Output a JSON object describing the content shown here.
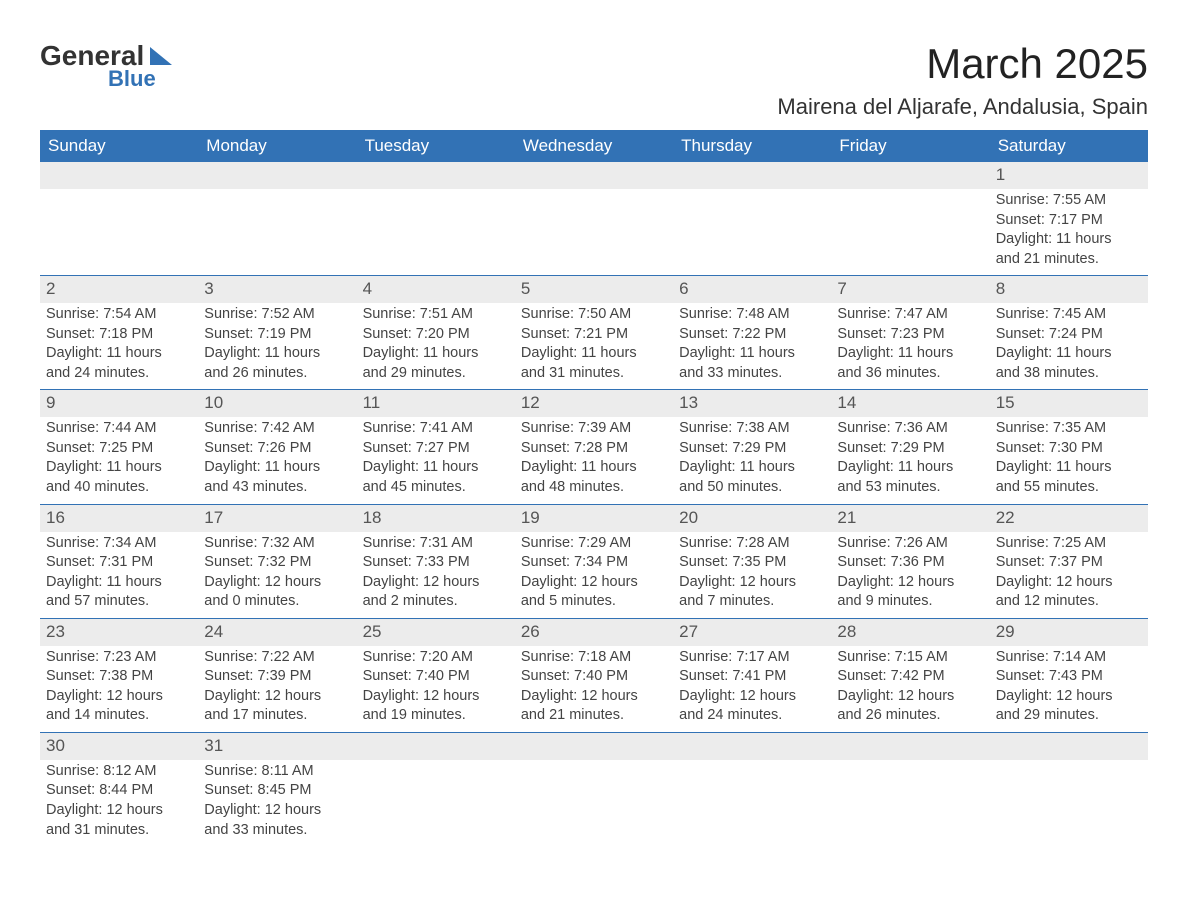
{
  "logo": {
    "text1": "General",
    "text2": "Blue"
  },
  "title": "March 2025",
  "location": "Mairena del Aljarafe, Andalusia, Spain",
  "colors": {
    "header_bg": "#3272b5",
    "header_text": "#ffffff",
    "daynum_bg": "#ececec",
    "border": "#3272b5",
    "body_text": "#444444"
  },
  "weekdays": [
    "Sunday",
    "Monday",
    "Tuesday",
    "Wednesday",
    "Thursday",
    "Friday",
    "Saturday"
  ],
  "weeks": [
    [
      null,
      null,
      null,
      null,
      null,
      null,
      {
        "d": "1",
        "sr": "Sunrise: 7:55 AM",
        "ss": "Sunset: 7:17 PM",
        "dl1": "Daylight: 11 hours",
        "dl2": "and 21 minutes."
      }
    ],
    [
      {
        "d": "2",
        "sr": "Sunrise: 7:54 AM",
        "ss": "Sunset: 7:18 PM",
        "dl1": "Daylight: 11 hours",
        "dl2": "and 24 minutes."
      },
      {
        "d": "3",
        "sr": "Sunrise: 7:52 AM",
        "ss": "Sunset: 7:19 PM",
        "dl1": "Daylight: 11 hours",
        "dl2": "and 26 minutes."
      },
      {
        "d": "4",
        "sr": "Sunrise: 7:51 AM",
        "ss": "Sunset: 7:20 PM",
        "dl1": "Daylight: 11 hours",
        "dl2": "and 29 minutes."
      },
      {
        "d": "5",
        "sr": "Sunrise: 7:50 AM",
        "ss": "Sunset: 7:21 PM",
        "dl1": "Daylight: 11 hours",
        "dl2": "and 31 minutes."
      },
      {
        "d": "6",
        "sr": "Sunrise: 7:48 AM",
        "ss": "Sunset: 7:22 PM",
        "dl1": "Daylight: 11 hours",
        "dl2": "and 33 minutes."
      },
      {
        "d": "7",
        "sr": "Sunrise: 7:47 AM",
        "ss": "Sunset: 7:23 PM",
        "dl1": "Daylight: 11 hours",
        "dl2": "and 36 minutes."
      },
      {
        "d": "8",
        "sr": "Sunrise: 7:45 AM",
        "ss": "Sunset: 7:24 PM",
        "dl1": "Daylight: 11 hours",
        "dl2": "and 38 minutes."
      }
    ],
    [
      {
        "d": "9",
        "sr": "Sunrise: 7:44 AM",
        "ss": "Sunset: 7:25 PM",
        "dl1": "Daylight: 11 hours",
        "dl2": "and 40 minutes."
      },
      {
        "d": "10",
        "sr": "Sunrise: 7:42 AM",
        "ss": "Sunset: 7:26 PM",
        "dl1": "Daylight: 11 hours",
        "dl2": "and 43 minutes."
      },
      {
        "d": "11",
        "sr": "Sunrise: 7:41 AM",
        "ss": "Sunset: 7:27 PM",
        "dl1": "Daylight: 11 hours",
        "dl2": "and 45 minutes."
      },
      {
        "d": "12",
        "sr": "Sunrise: 7:39 AM",
        "ss": "Sunset: 7:28 PM",
        "dl1": "Daylight: 11 hours",
        "dl2": "and 48 minutes."
      },
      {
        "d": "13",
        "sr": "Sunrise: 7:38 AM",
        "ss": "Sunset: 7:29 PM",
        "dl1": "Daylight: 11 hours",
        "dl2": "and 50 minutes."
      },
      {
        "d": "14",
        "sr": "Sunrise: 7:36 AM",
        "ss": "Sunset: 7:29 PM",
        "dl1": "Daylight: 11 hours",
        "dl2": "and 53 minutes."
      },
      {
        "d": "15",
        "sr": "Sunrise: 7:35 AM",
        "ss": "Sunset: 7:30 PM",
        "dl1": "Daylight: 11 hours",
        "dl2": "and 55 minutes."
      }
    ],
    [
      {
        "d": "16",
        "sr": "Sunrise: 7:34 AM",
        "ss": "Sunset: 7:31 PM",
        "dl1": "Daylight: 11 hours",
        "dl2": "and 57 minutes."
      },
      {
        "d": "17",
        "sr": "Sunrise: 7:32 AM",
        "ss": "Sunset: 7:32 PM",
        "dl1": "Daylight: 12 hours",
        "dl2": "and 0 minutes."
      },
      {
        "d": "18",
        "sr": "Sunrise: 7:31 AM",
        "ss": "Sunset: 7:33 PM",
        "dl1": "Daylight: 12 hours",
        "dl2": "and 2 minutes."
      },
      {
        "d": "19",
        "sr": "Sunrise: 7:29 AM",
        "ss": "Sunset: 7:34 PM",
        "dl1": "Daylight: 12 hours",
        "dl2": "and 5 minutes."
      },
      {
        "d": "20",
        "sr": "Sunrise: 7:28 AM",
        "ss": "Sunset: 7:35 PM",
        "dl1": "Daylight: 12 hours",
        "dl2": "and 7 minutes."
      },
      {
        "d": "21",
        "sr": "Sunrise: 7:26 AM",
        "ss": "Sunset: 7:36 PM",
        "dl1": "Daylight: 12 hours",
        "dl2": "and 9 minutes."
      },
      {
        "d": "22",
        "sr": "Sunrise: 7:25 AM",
        "ss": "Sunset: 7:37 PM",
        "dl1": "Daylight: 12 hours",
        "dl2": "and 12 minutes."
      }
    ],
    [
      {
        "d": "23",
        "sr": "Sunrise: 7:23 AM",
        "ss": "Sunset: 7:38 PM",
        "dl1": "Daylight: 12 hours",
        "dl2": "and 14 minutes."
      },
      {
        "d": "24",
        "sr": "Sunrise: 7:22 AM",
        "ss": "Sunset: 7:39 PM",
        "dl1": "Daylight: 12 hours",
        "dl2": "and 17 minutes."
      },
      {
        "d": "25",
        "sr": "Sunrise: 7:20 AM",
        "ss": "Sunset: 7:40 PM",
        "dl1": "Daylight: 12 hours",
        "dl2": "and 19 minutes."
      },
      {
        "d": "26",
        "sr": "Sunrise: 7:18 AM",
        "ss": "Sunset: 7:40 PM",
        "dl1": "Daylight: 12 hours",
        "dl2": "and 21 minutes."
      },
      {
        "d": "27",
        "sr": "Sunrise: 7:17 AM",
        "ss": "Sunset: 7:41 PM",
        "dl1": "Daylight: 12 hours",
        "dl2": "and 24 minutes."
      },
      {
        "d": "28",
        "sr": "Sunrise: 7:15 AM",
        "ss": "Sunset: 7:42 PM",
        "dl1": "Daylight: 12 hours",
        "dl2": "and 26 minutes."
      },
      {
        "d": "29",
        "sr": "Sunrise: 7:14 AM",
        "ss": "Sunset: 7:43 PM",
        "dl1": "Daylight: 12 hours",
        "dl2": "and 29 minutes."
      }
    ],
    [
      {
        "d": "30",
        "sr": "Sunrise: 8:12 AM",
        "ss": "Sunset: 8:44 PM",
        "dl1": "Daylight: 12 hours",
        "dl2": "and 31 minutes."
      },
      {
        "d": "31",
        "sr": "Sunrise: 8:11 AM",
        "ss": "Sunset: 8:45 PM",
        "dl1": "Daylight: 12 hours",
        "dl2": "and 33 minutes."
      },
      null,
      null,
      null,
      null,
      null
    ]
  ]
}
